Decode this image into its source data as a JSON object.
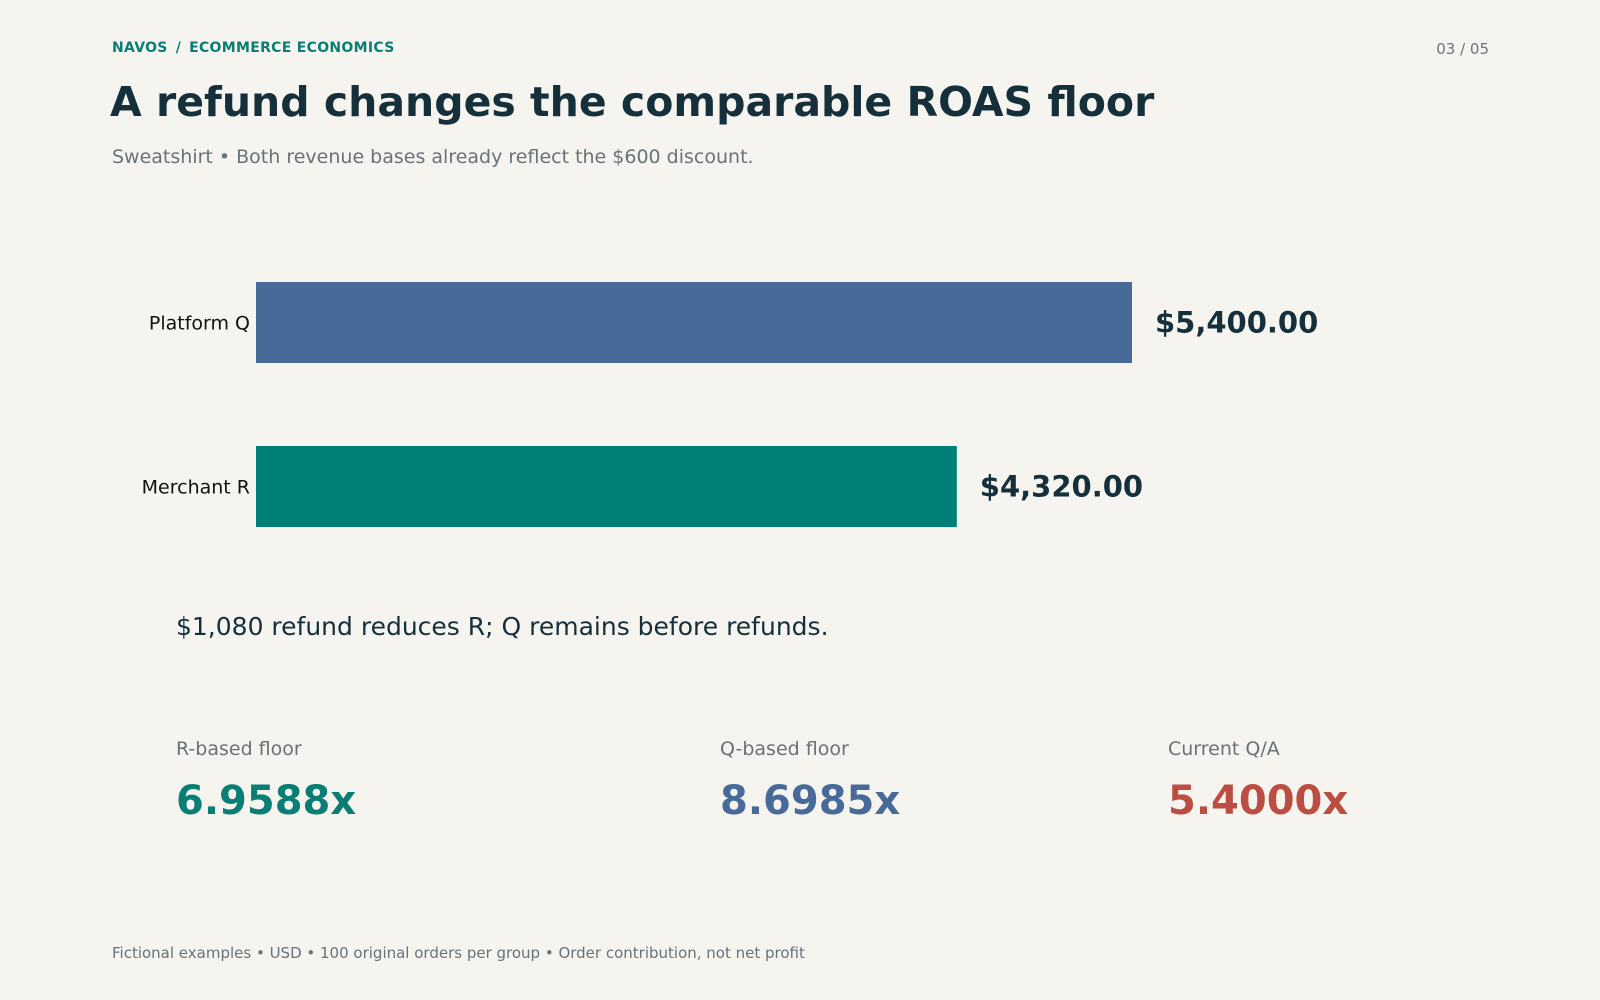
{
  "header": {
    "brand": "NAVOS",
    "separator": "/",
    "section": "ECOMMERCE ECONOMICS",
    "page_number": "03 / 05"
  },
  "title": "A refund changes the comparable ROAS floor",
  "subtitle": "Sweatshirt • Both revenue bases already reflect the $600 discount.",
  "chart_data": {
    "type": "bar",
    "orientation": "horizontal",
    "categories": [
      "Platform Q",
      "Merchant R"
    ],
    "values": [
      5400,
      4320
    ],
    "value_labels": [
      "$5,400.00",
      "$4,320.00"
    ],
    "colors": [
      "#476a98",
      "#007f78"
    ],
    "title": "",
    "xlabel": "",
    "ylabel": "",
    "xlim": [
      0,
      5400
    ],
    "grid": false,
    "legend": "none"
  },
  "chart_note": "$1,080 refund reduces R; Q remains before refunds.",
  "metrics": [
    {
      "label": "R-based floor",
      "value": "6.9588x",
      "color": "#0a7d74"
    },
    {
      "label": "Q-based floor",
      "value": "8.6985x",
      "color": "#476a98"
    },
    {
      "label": "Current Q/A",
      "value": "5.4000x",
      "color": "#bb4d42"
    }
  ],
  "footer": "Fictional examples • USD • 100 original orders per group • Order contribution, not net profit"
}
